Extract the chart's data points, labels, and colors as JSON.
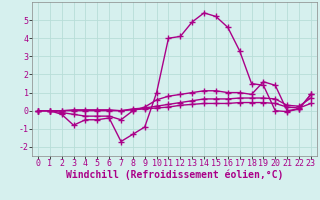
{
  "xlabel": "Windchill (Refroidissement éolien,°C)",
  "background_color": "#d6f0ee",
  "grid_color": "#b8ddd8",
  "line_color": "#aa0088",
  "x": [
    0,
    1,
    2,
    3,
    4,
    5,
    6,
    7,
    8,
    9,
    10,
    11,
    12,
    13,
    14,
    15,
    16,
    17,
    18,
    19,
    20,
    21,
    22,
    23
  ],
  "line1": [
    0.0,
    0.0,
    -0.2,
    -0.8,
    -0.5,
    -0.5,
    -0.4,
    -1.7,
    -1.3,
    -0.9,
    1.0,
    4.0,
    4.1,
    4.9,
    5.4,
    5.2,
    4.6,
    3.3,
    1.5,
    1.4,
    0.0,
    -0.05,
    0.1,
    0.9
  ],
  "line2": [
    0.0,
    0.0,
    -0.1,
    -0.2,
    -0.3,
    -0.3,
    -0.3,
    -0.5,
    0.0,
    0.2,
    0.6,
    0.8,
    0.9,
    1.0,
    1.1,
    1.1,
    1.0,
    1.0,
    0.9,
    1.6,
    1.4,
    0.0,
    0.1,
    0.9
  ],
  "line3": [
    0.0,
    0.0,
    0.0,
    0.05,
    0.05,
    0.05,
    0.05,
    0.0,
    0.1,
    0.15,
    0.25,
    0.35,
    0.45,
    0.55,
    0.65,
    0.65,
    0.65,
    0.7,
    0.7,
    0.7,
    0.65,
    0.3,
    0.25,
    0.7
  ],
  "line4": [
    0.0,
    0.0,
    0.0,
    0.0,
    0.0,
    0.0,
    0.0,
    0.0,
    0.05,
    0.1,
    0.15,
    0.2,
    0.3,
    0.35,
    0.4,
    0.4,
    0.4,
    0.45,
    0.45,
    0.45,
    0.4,
    0.2,
    0.15,
    0.4
  ],
  "ylim": [
    -2.5,
    6.0
  ],
  "xlim": [
    -0.5,
    23.5
  ],
  "yticks": [
    -2,
    -1,
    0,
    1,
    2,
    3,
    4,
    5
  ],
  "xticks": [
    0,
    1,
    2,
    3,
    4,
    5,
    6,
    7,
    8,
    9,
    10,
    11,
    12,
    13,
    14,
    15,
    16,
    17,
    18,
    19,
    20,
    21,
    22,
    23
  ],
  "marker": "+",
  "markersize": 4,
  "markeredgewidth": 1.0,
  "linewidth": 1.0,
  "xlabel_fontsize": 7,
  "tick_fontsize": 6
}
